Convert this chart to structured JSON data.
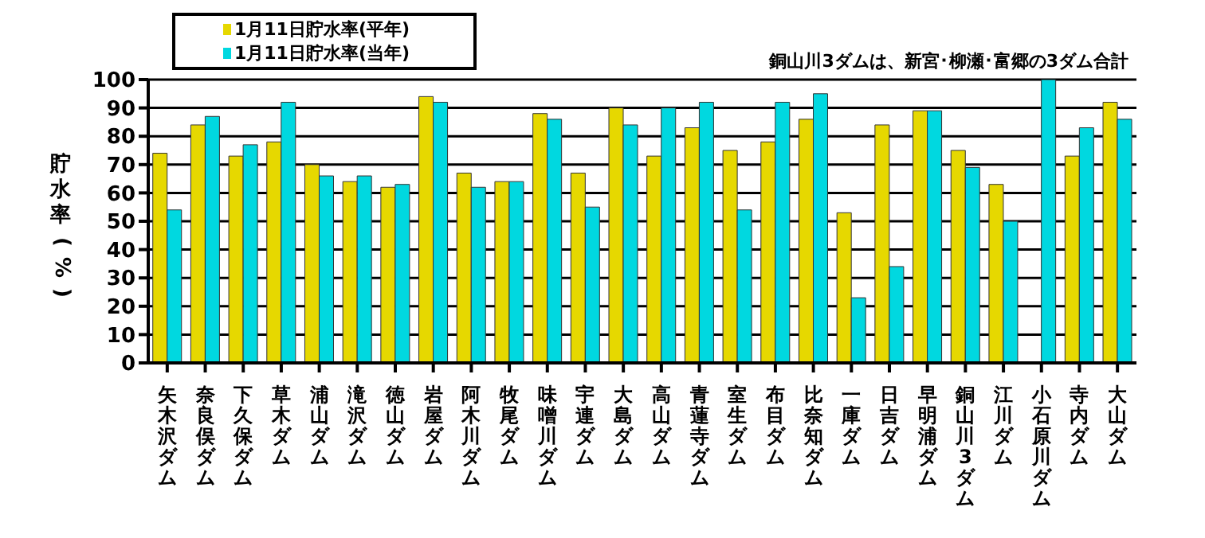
{
  "chart_data": {
    "type": "bar",
    "ylabel": "貯水率(%)",
    "annotations": [
      "銅山川3ダムは、新宮･柳瀬･富郷の3ダム合計"
    ],
    "categories": [
      "矢木沢ダム",
      "奈良俣ダム",
      "下久保ダム",
      "草木ダム",
      "浦山ダム",
      "滝沢ダム",
      "徳山ダム",
      "岩屋ダム",
      "阿木川ダム",
      "牧尾ダム",
      "味噌川ダム",
      "宇連ダム",
      "大島ダム",
      "高山ダム",
      "青蓮寺ダム",
      "室生ダム",
      "布目ダム",
      "比奈知ダム",
      "一庫ダム",
      "日吉ダム",
      "早明浦ダム",
      "銅山川3ダム",
      "江川ダム",
      "小石原川ダム",
      "寺内ダム",
      "大山ダム"
    ],
    "series": [
      {
        "name": "1月11日貯水率(平年)",
        "color": "#e6d800",
        "values": [
          74,
          84,
          73,
          78,
          70,
          64,
          62,
          94,
          67,
          64,
          88,
          67,
          90,
          73,
          83,
          75,
          78,
          86,
          53,
          84,
          89,
          75,
          63,
          null,
          73,
          92
        ]
      },
      {
        "name": "1月11日貯水率(当年)",
        "color": "#00d8e0",
        "values": [
          54,
          87,
          77,
          92,
          66,
          66,
          63,
          92,
          62,
          64,
          86,
          55,
          84,
          90,
          92,
          54,
          92,
          95,
          23,
          34,
          89,
          69,
          50,
          100,
          83,
          86
        ]
      }
    ],
    "ylim": [
      0,
      100
    ],
    "yticks": [
      0,
      10,
      20,
      30,
      40,
      50,
      60,
      70,
      80,
      90,
      100
    ],
    "grid": "y",
    "legend": "top left"
  }
}
